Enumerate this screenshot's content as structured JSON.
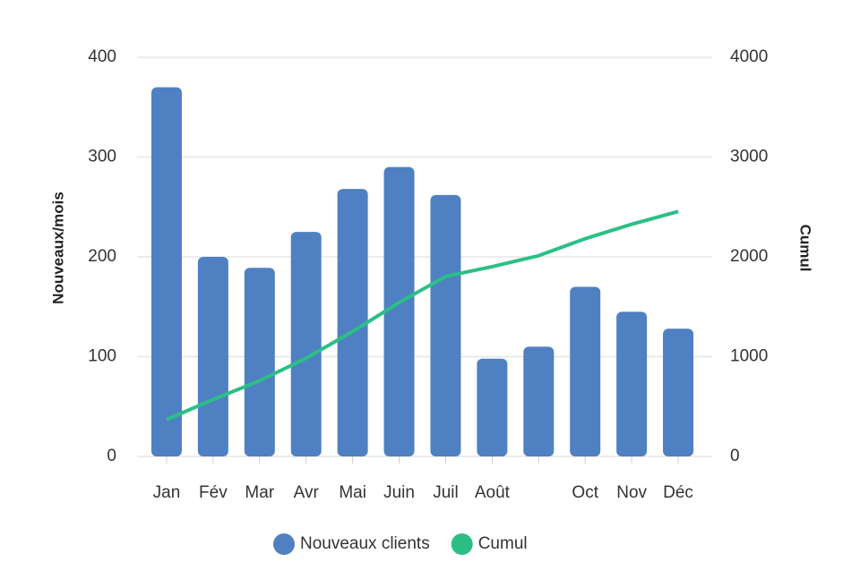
{
  "chart_data": {
    "type": "bar",
    "categories": [
      "Jan",
      "Fév",
      "Mar",
      "Avr",
      "Mai",
      "Juin",
      "Juil",
      "Août",
      null,
      "Oct",
      "Nov",
      "Déc"
    ],
    "series": [
      {
        "name": "Nouveaux clients",
        "type": "bar",
        "color": "#4f80c2",
        "values": [
          370,
          200,
          189,
          225,
          268,
          290,
          262,
          98,
          110,
          170,
          145,
          128
        ]
      },
      {
        "name": "Cumul",
        "type": "line",
        "axis": "y2",
        "color": "#2bbf86",
        "values": [
          370,
          570,
          759,
          984,
          1252,
          1542,
          1804,
          1902,
          2012,
          2182,
          2327,
          2455
        ]
      }
    ],
    "ylabel": "Nouveaux/mois",
    "y2label": "Cumul",
    "ylim": [
      0,
      400
    ],
    "yticks": [
      0,
      100,
      200,
      300,
      400
    ],
    "y2lim": [
      0,
      4000
    ],
    "y2ticks": [
      0,
      1000,
      2000,
      3000,
      4000
    ],
    "grid": true,
    "legend": "bottom"
  }
}
